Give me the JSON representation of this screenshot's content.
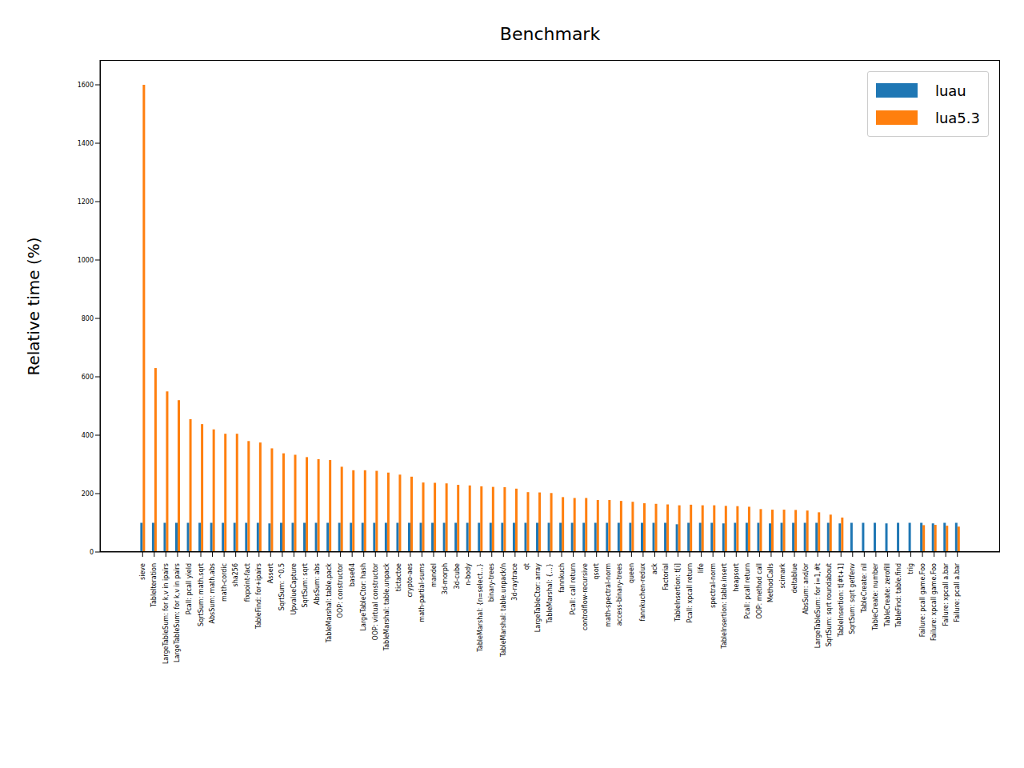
{
  "chart_data": {
    "type": "bar",
    "title": "Benchmark",
    "y_label": "Relative time (%)",
    "categories": [
      "sieve",
      "TableIteration",
      "LargeTableSum: for k,v in ipairs",
      "LargeTableSum: for k,v in pairs",
      "Pcall: pcall yield",
      "SqrtSum: math.sqrt",
      "AbsSum: math.abs",
      "math-cordic",
      "sha256",
      "fixpoint-fact",
      "TableFind: for+ipairs",
      "Assert",
      "SqrtSum: ^0.5",
      "UpvalueCapture",
      "SqrtSum: sqrt",
      "AbsSum: abs",
      "TableMarshal: table.pack",
      "OOP: constructor",
      "base64",
      "LargeTableCtor: hash",
      "OOP: virtual constructor",
      "TableMarshal: table.unpack",
      "tictactoe",
      "crypto-aes",
      "math-partial-sums",
      "mandel",
      "3d-morph",
      "3d-cube",
      "n-body",
      "TableMarshal: {n=select...}",
      "binary-trees",
      "TableMarshal: table.unpack/n",
      "3d-raytrace",
      "qt",
      "LargeTableCtor: array",
      "TableMarshal: {...}",
      "fannkuch",
      "Pcall: call return",
      "controlflow-recursive",
      "qsort",
      "math-spectral-norm",
      "access-binary-trees",
      "queen",
      "fannkuchen-redux",
      "ack",
      "Factorial",
      "TableInsertion: t[i]",
      "Pcall: xpcall return",
      "life",
      "spectral-norm",
      "TableInsertion: table.insert",
      "heapsort",
      "Pcall: pcall return",
      "OOP: method call",
      "MethodCalls",
      "scimark",
      "deltablue",
      "AbsSum: and/or",
      "LargeTableSum: for i=1,#t",
      "SqrtSum: sqrt roundabout",
      "TableInsertion: t[#t+1]",
      "SqrtSum: sqrt getfenv",
      "TableCreate: nil",
      "TableCreate: number",
      "TableCreate: zerofill",
      "TableFind: table.find",
      "trig",
      "Failure: pcall game.Foo",
      "Failure: xpcall game.Foo",
      "Failure: xpcall a.bar",
      "Failure: pcall a.bar"
    ],
    "series": [
      {
        "name": "luau",
        "color": "#1f77b4",
        "values": [
          100,
          100,
          100,
          100,
          100,
          100,
          100,
          100,
          100,
          100,
          100,
          98,
          100,
          100,
          100,
          100,
          100,
          100,
          100,
          100,
          100,
          100,
          100,
          100,
          100,
          100,
          100,
          100,
          100,
          100,
          100,
          100,
          100,
          100,
          100,
          100,
          100,
          100,
          100,
          100,
          100,
          100,
          100,
          100,
          100,
          100,
          95,
          100,
          100,
          100,
          98,
          100,
          100,
          100,
          98,
          100,
          100,
          100,
          100,
          100,
          98,
          100,
          100,
          100,
          98,
          100,
          100,
          100,
          98,
          100,
          100
        ]
      },
      {
        "name": "lua5.3",
        "color": "#ff7f0e",
        "values": [
          1600,
          630,
          550,
          520,
          455,
          438,
          420,
          405,
          405,
          380,
          375,
          355,
          338,
          333,
          325,
          318,
          315,
          292,
          280,
          280,
          278,
          272,
          265,
          258,
          238,
          237,
          235,
          230,
          228,
          225,
          223,
          222,
          217,
          205,
          204,
          202,
          188,
          185,
          185,
          178,
          178,
          175,
          172,
          167,
          165,
          163,
          160,
          162,
          160,
          160,
          158,
          157,
          155,
          147,
          145,
          145,
          144,
          142,
          136,
          128,
          118,
          null,
          null,
          null,
          null,
          null,
          null,
          92,
          93,
          90,
          87
        ]
      }
    ],
    "ylim": [
      0,
      1685
    ],
    "yticks": [
      0,
      200,
      400,
      600,
      800,
      1000,
      1200,
      1400,
      1600
    ],
    "legend": "upper right"
  }
}
